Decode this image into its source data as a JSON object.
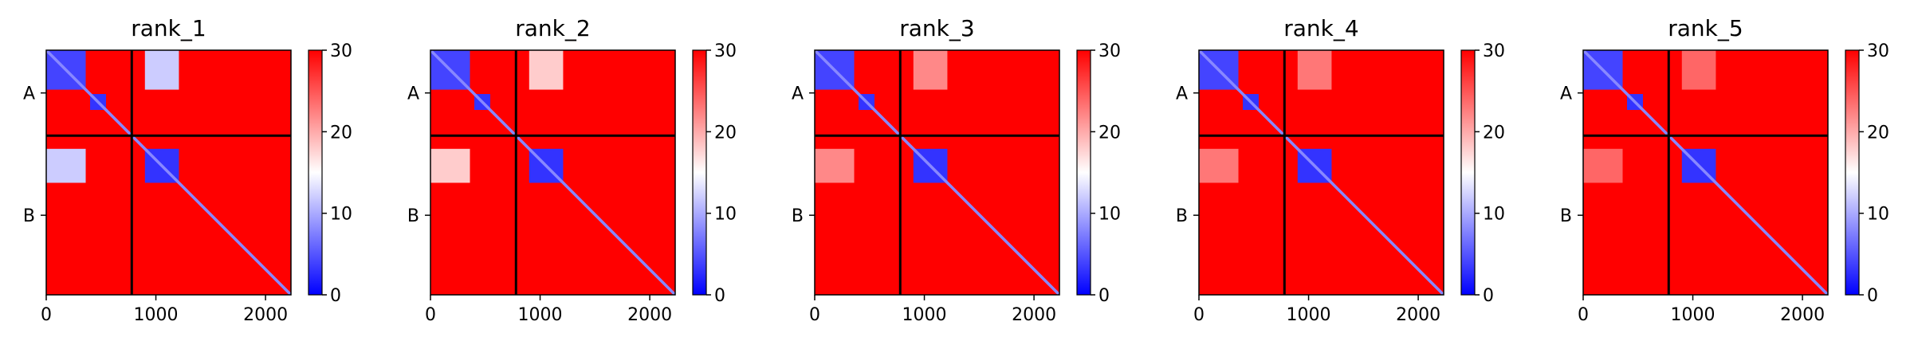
{
  "chart_data": [
    {
      "type": "heatmap",
      "title": "rank_1",
      "xlabel": "",
      "ylabel": "",
      "x_ticks": [
        0,
        1000,
        2000
      ],
      "xlim": [
        0,
        2232
      ],
      "y_tick_labels": [
        "A",
        "B"
      ],
      "chain_boundary": 780,
      "colorbar": {
        "min": 0,
        "max": 30,
        "ticks": [
          0,
          10,
          20,
          30
        ],
        "colormap": "bwr"
      },
      "low_value_regions": [
        {
          "x": [
            0,
            360
          ],
          "y": [
            0,
            360
          ],
          "value": 4
        },
        {
          "x": [
            400,
            545
          ],
          "y": [
            400,
            545
          ],
          "value": 3
        },
        {
          "x": [
            900,
            1210
          ],
          "y": [
            900,
            1210
          ],
          "value": 3
        },
        {
          "x": [
            900,
            1210
          ],
          "y": [
            0,
            360
          ],
          "value": 12
        },
        {
          "x": [
            0,
            360
          ],
          "y": [
            900,
            1210
          ],
          "value": 12
        }
      ]
    },
    {
      "type": "heatmap",
      "title": "rank_2",
      "xlabel": "",
      "ylabel": "",
      "x_ticks": [
        0,
        1000,
        2000
      ],
      "xlim": [
        0,
        2232
      ],
      "y_tick_labels": [
        "A",
        "B"
      ],
      "chain_boundary": 780,
      "colorbar": {
        "min": 0,
        "max": 30,
        "ticks": [
          0,
          10,
          20,
          30
        ],
        "colormap": "bwr"
      },
      "low_value_regions": [
        {
          "x": [
            0,
            360
          ],
          "y": [
            0,
            360
          ],
          "value": 4
        },
        {
          "x": [
            400,
            545
          ],
          "y": [
            400,
            545
          ],
          "value": 3
        },
        {
          "x": [
            900,
            1210
          ],
          "y": [
            900,
            1210
          ],
          "value": 3
        },
        {
          "x": [
            900,
            1210
          ],
          "y": [
            0,
            360
          ],
          "value": 18
        },
        {
          "x": [
            0,
            360
          ],
          "y": [
            900,
            1210
          ],
          "value": 18
        }
      ]
    },
    {
      "type": "heatmap",
      "title": "rank_3",
      "xlabel": "",
      "ylabel": "",
      "x_ticks": [
        0,
        1000,
        2000
      ],
      "xlim": [
        0,
        2232
      ],
      "y_tick_labels": [
        "A",
        "B"
      ],
      "chain_boundary": 780,
      "colorbar": {
        "min": 0,
        "max": 30,
        "ticks": [
          0,
          10,
          20,
          30
        ],
        "colormap": "bwr"
      },
      "low_value_regions": [
        {
          "x": [
            0,
            360
          ],
          "y": [
            0,
            360
          ],
          "value": 4
        },
        {
          "x": [
            400,
            545
          ],
          "y": [
            400,
            545
          ],
          "value": 3
        },
        {
          "x": [
            900,
            1210
          ],
          "y": [
            900,
            1210
          ],
          "value": 3
        },
        {
          "x": [
            900,
            1210
          ],
          "y": [
            0,
            360
          ],
          "value": 22
        },
        {
          "x": [
            0,
            360
          ],
          "y": [
            900,
            1210
          ],
          "value": 22
        }
      ]
    },
    {
      "type": "heatmap",
      "title": "rank_4",
      "xlabel": "",
      "ylabel": "",
      "x_ticks": [
        0,
        1000,
        2000
      ],
      "xlim": [
        0,
        2232
      ],
      "y_tick_labels": [
        "A",
        "B"
      ],
      "chain_boundary": 780,
      "colorbar": {
        "min": 0,
        "max": 30,
        "ticks": [
          0,
          10,
          20,
          30
        ],
        "colormap": "bwr"
      },
      "low_value_regions": [
        {
          "x": [
            0,
            360
          ],
          "y": [
            0,
            360
          ],
          "value": 4
        },
        {
          "x": [
            400,
            545
          ],
          "y": [
            400,
            545
          ],
          "value": 3
        },
        {
          "x": [
            900,
            1210
          ],
          "y": [
            900,
            1210
          ],
          "value": 3
        },
        {
          "x": [
            900,
            1210
          ],
          "y": [
            0,
            360
          ],
          "value": 23
        },
        {
          "x": [
            0,
            360
          ],
          "y": [
            900,
            1210
          ],
          "value": 23
        }
      ]
    },
    {
      "type": "heatmap",
      "title": "rank_5",
      "xlabel": "",
      "ylabel": "",
      "x_ticks": [
        0,
        1000,
        2000
      ],
      "xlim": [
        0,
        2232
      ],
      "y_tick_labels": [
        "A",
        "B"
      ],
      "chain_boundary": 780,
      "colorbar": {
        "min": 0,
        "max": 30,
        "ticks": [
          0,
          10,
          20,
          30
        ],
        "colormap": "bwr"
      },
      "low_value_regions": [
        {
          "x": [
            0,
            360
          ],
          "y": [
            0,
            360
          ],
          "value": 4
        },
        {
          "x": [
            400,
            545
          ],
          "y": [
            400,
            545
          ],
          "value": 3
        },
        {
          "x": [
            900,
            1210
          ],
          "y": [
            900,
            1210
          ],
          "value": 3
        },
        {
          "x": [
            900,
            1210
          ],
          "y": [
            0,
            360
          ],
          "value": 24
        },
        {
          "x": [
            0,
            360
          ],
          "y": [
            900,
            1210
          ],
          "value": 24
        }
      ]
    }
  ]
}
